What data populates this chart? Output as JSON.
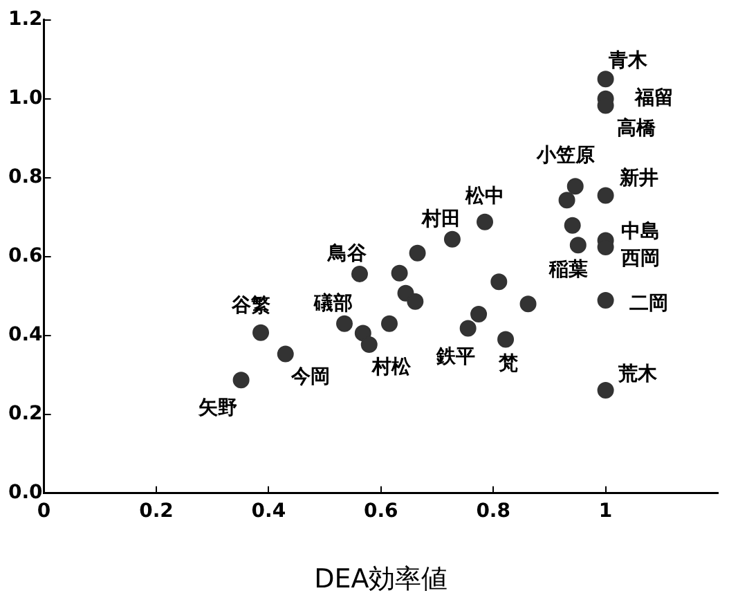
{
  "chart_data": {
    "type": "scatter",
    "xlabel": "DEA効率値",
    "x": [
      1.0,
      1.0,
      1.0,
      0.946,
      0.931,
      1.0,
      0.941,
      1.0,
      1.0,
      0.951,
      0.785,
      0.727,
      0.665,
      0.562,
      0.633,
      0.81,
      0.644,
      0.661,
      0.862,
      1.0,
      0.386,
      0.535,
      0.568,
      0.579,
      0.615,
      0.774,
      0.755,
      0.822,
      0.43,
      0.351,
      1.0
    ],
    "series": [
      {
        "color": "#333333",
        "values": [
          1.05,
          1.0,
          0.983,
          0.778,
          0.743,
          0.755,
          0.679,
          0.641,
          0.624,
          0.629,
          0.688,
          0.644,
          0.609,
          0.556,
          0.558,
          0.536,
          0.507,
          0.486,
          0.48,
          0.489,
          0.407,
          0.43,
          0.406,
          0.377,
          0.43,
          0.454,
          0.418,
          0.39,
          0.353,
          0.287,
          0.261
        ]
      }
    ],
    "xlim": [
      0,
      1.2
    ],
    "xticks": [
      0,
      0.2,
      0.4,
      0.6,
      0.8,
      1
    ],
    "ylim": [
      0,
      1.2
    ],
    "yticks": [
      {
        "value": 0,
        "label": "0.0"
      },
      {
        "value": 0.2,
        "label": "0.2"
      },
      {
        "value": 0.4,
        "label": "0.4"
      },
      {
        "value": 0.6,
        "label": "0.6"
      },
      {
        "value": 0.8,
        "label": "0.8"
      },
      {
        "value": 1.0,
        "label": "1.0"
      },
      {
        "value": 1.2,
        "label": "1.2"
      }
    ],
    "grid": false,
    "legend": false,
    "marker": "circle",
    "annotations": [
      {
        "text": "青木",
        "x": 1.0,
        "y": 1.05
      },
      {
        "text": "福留",
        "x": 1.0,
        "y": 1.0
      },
      {
        "text": "高橋",
        "x": 1.0,
        "y": 0.983
      },
      {
        "text": "小笠原",
        "x": 0.946,
        "y": 0.778
      },
      {
        "text": "新井",
        "x": 1.0,
        "y": 0.755
      },
      {
        "text": "中島",
        "x": 1.0,
        "y": 0.641
      },
      {
        "text": "西岡",
        "x": 1.0,
        "y": 0.624
      },
      {
        "text": "稲葉",
        "x": 0.951,
        "y": 0.629
      },
      {
        "text": "二岡",
        "x": 1.0,
        "y": 0.489
      },
      {
        "text": "荒木",
        "x": 1.0,
        "y": 0.261
      },
      {
        "text": "松中",
        "x": 0.785,
        "y": 0.688
      },
      {
        "text": "村田",
        "x": 0.727,
        "y": 0.644
      },
      {
        "text": "鳥谷",
        "x": 0.562,
        "y": 0.556
      },
      {
        "text": "谷繁",
        "x": 0.386,
        "y": 0.407
      },
      {
        "text": "礒部",
        "x": 0.535,
        "y": 0.43
      },
      {
        "text": "村松",
        "x": 0.579,
        "y": 0.377
      },
      {
        "text": "鉄平",
        "x": 0.755,
        "y": 0.418
      },
      {
        "text": "梵",
        "x": 0.822,
        "y": 0.39
      },
      {
        "text": "今岡",
        "x": 0.43,
        "y": 0.353
      },
      {
        "text": "矢野",
        "x": 0.351,
        "y": 0.287
      }
    ]
  }
}
